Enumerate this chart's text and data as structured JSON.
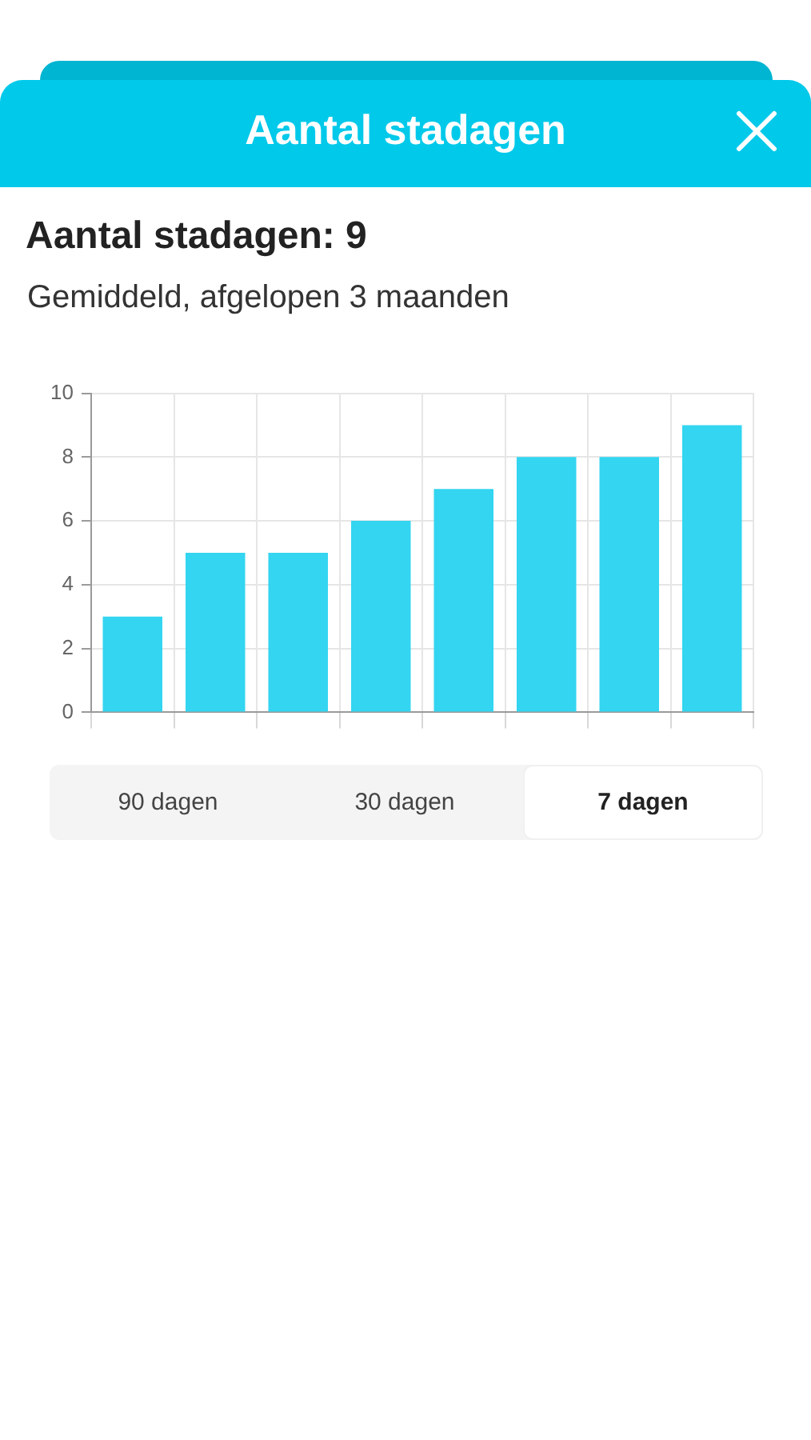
{
  "chart_data": {
    "type": "bar",
    "title": "Aantal stadagen: 9",
    "subtitle": "Gemiddeld, afgelopen 3 maanden",
    "categories": [
      null,
      null,
      null,
      null,
      null,
      null,
      null,
      null
    ],
    "values": [
      3,
      5,
      5,
      6,
      7,
      8,
      8,
      9
    ],
    "color": "#33d5f0",
    "ylim": [
      0,
      10
    ],
    "yticks": [
      0,
      2,
      4,
      6,
      8,
      10
    ],
    "grid": true,
    "annotations": [
      "Aantal stadagen",
      "90 dagen",
      "30 dagen",
      "7 dagen"
    ]
  }
}
